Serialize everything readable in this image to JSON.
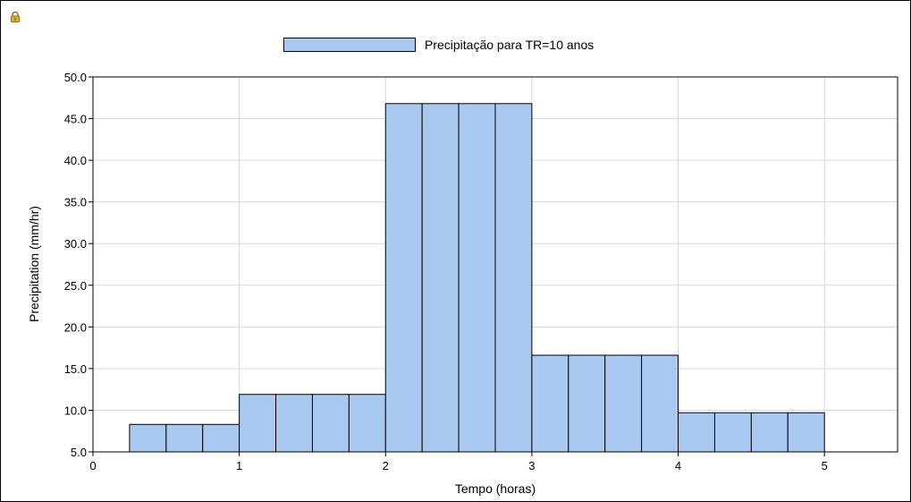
{
  "chart_data": {
    "type": "bar",
    "legend": {
      "label": "Precipitação para TR=10 anos",
      "position": "top-center"
    },
    "xlabel": "Tempo (horas)",
    "ylabel": "Precipitation (mm/hr)",
    "xlim": [
      0,
      5.5
    ],
    "ylim": [
      5.0,
      50.0
    ],
    "xticks": [
      "0",
      "1",
      "2",
      "3",
      "4",
      "5"
    ],
    "yticks": [
      "5.0",
      "10.0",
      "15.0",
      "20.0",
      "25.0",
      "30.0",
      "35.0",
      "40.0",
      "45.0",
      "50.0"
    ],
    "grid": true,
    "bar_color": "#a9c9f0",
    "series": [
      {
        "name": "Precipitação para TR=10 anos",
        "x_start": [
          0.25,
          0.5,
          0.75,
          1.0,
          1.25,
          1.5,
          1.75,
          2.0,
          2.25,
          2.5,
          2.75,
          3.0,
          3.25,
          3.5,
          3.75,
          4.0,
          4.25,
          4.5,
          4.75
        ],
        "x_end": [
          0.5,
          0.75,
          1.0,
          1.25,
          1.5,
          1.75,
          2.0,
          2.25,
          2.5,
          2.75,
          3.0,
          3.25,
          3.5,
          3.75,
          4.0,
          4.25,
          4.5,
          4.75,
          5.0
        ],
        "values": [
          8.3,
          8.3,
          8.3,
          11.9,
          11.9,
          11.9,
          11.9,
          46.8,
          46.8,
          46.8,
          46.8,
          16.6,
          16.6,
          16.6,
          16.6,
          9.7,
          9.7,
          9.7,
          9.7
        ]
      }
    ]
  }
}
